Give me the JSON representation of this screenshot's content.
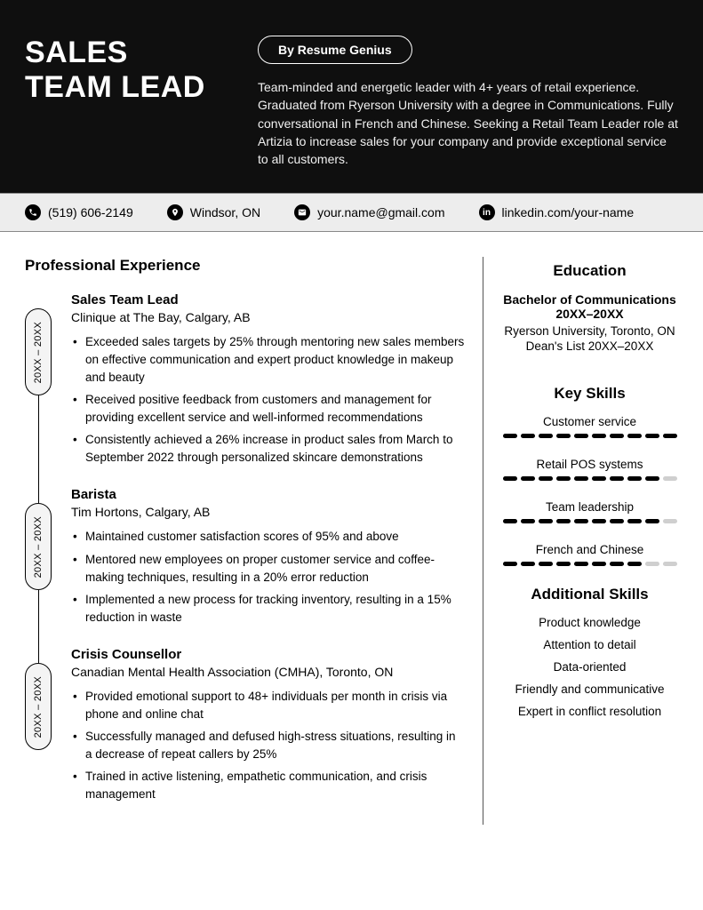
{
  "colors": {
    "header_bg": "#0f0f0f",
    "contact_bg": "#ededed",
    "text": "#000000",
    "summary_text": "#f0f0f0",
    "dash_on": "#000000",
    "dash_off": "#cfcfcf"
  },
  "header": {
    "title_line1": "SALES",
    "title_line2": "TEAM LEAD",
    "badge": "By Resume Genius",
    "summary": "Team-minded and energetic leader with 4+ years of retail experience. Graduated from Ryerson University with a degree in Communications. Fully conversational in French and Chinese. Seeking a Retail Team Leader role at Artizia to increase sales for your company and provide exceptional service to all customers."
  },
  "contact": {
    "phone": "(519) 606-2149",
    "location": "Windsor, ON",
    "email": "your.name@gmail.com",
    "linkedin": "linkedin.com/your-name"
  },
  "experience_heading": "Professional Experience",
  "experience": [
    {
      "dates": "20XX – 20XX",
      "title": "Sales Team Lead",
      "company": "Clinique at The Bay, Calgary, AB",
      "bullets": [
        "Exceeded sales targets by 25% through mentoring new sales members on effective communication and expert product knowledge in makeup and beauty",
        "Received positive feedback from customers and management for providing excellent service and well-informed recommendations",
        "Consistently achieved a 26% increase in product sales from March to September 2022 through personalized skincare demonstrations"
      ]
    },
    {
      "dates": "20XX – 20XX",
      "title": "Barista",
      "company": "Tim Hortons, Calgary, AB",
      "bullets": [
        "Maintained customer satisfaction scores of 95% and above",
        "Mentored new employees on proper customer service and coffee-making techniques, resulting in a 20% error reduction",
        "Implemented a new process for tracking inventory, resulting in a 15% reduction in waste"
      ]
    },
    {
      "dates": "20XX – 20XX",
      "title": "Crisis Counsellor",
      "company": "Canadian Mental Health Association (CMHA), Toronto, ON",
      "bullets": [
        "Provided emotional support to 48+ individuals per month in crisis via phone and online chat",
        "Successfully managed and defused high-stress situations, resulting in a decrease of repeat callers by 25%",
        "Trained in active listening, empathetic communication, and crisis management"
      ]
    }
  ],
  "education_heading": "Education",
  "education": {
    "degree": "Bachelor of Communications",
    "dates": "20XX–20XX",
    "school": "Ryerson University, Toronto, ON",
    "honor": "Dean's List 20XX–20XX"
  },
  "key_skills_heading": "Key Skills",
  "key_skills": [
    {
      "name": "Customer service",
      "level": 10,
      "max": 10
    },
    {
      "name": "Retail POS systems",
      "level": 9,
      "max": 10
    },
    {
      "name": "Team leadership",
      "level": 9,
      "max": 10
    },
    {
      "name": "French and Chinese",
      "level": 8,
      "max": 10
    }
  ],
  "additional_heading": "Additional Skills",
  "additional_skills": [
    "Product knowledge",
    "Attention to detail",
    "Data-oriented",
    "Friendly and communicative",
    "Expert in conflict resolution"
  ]
}
